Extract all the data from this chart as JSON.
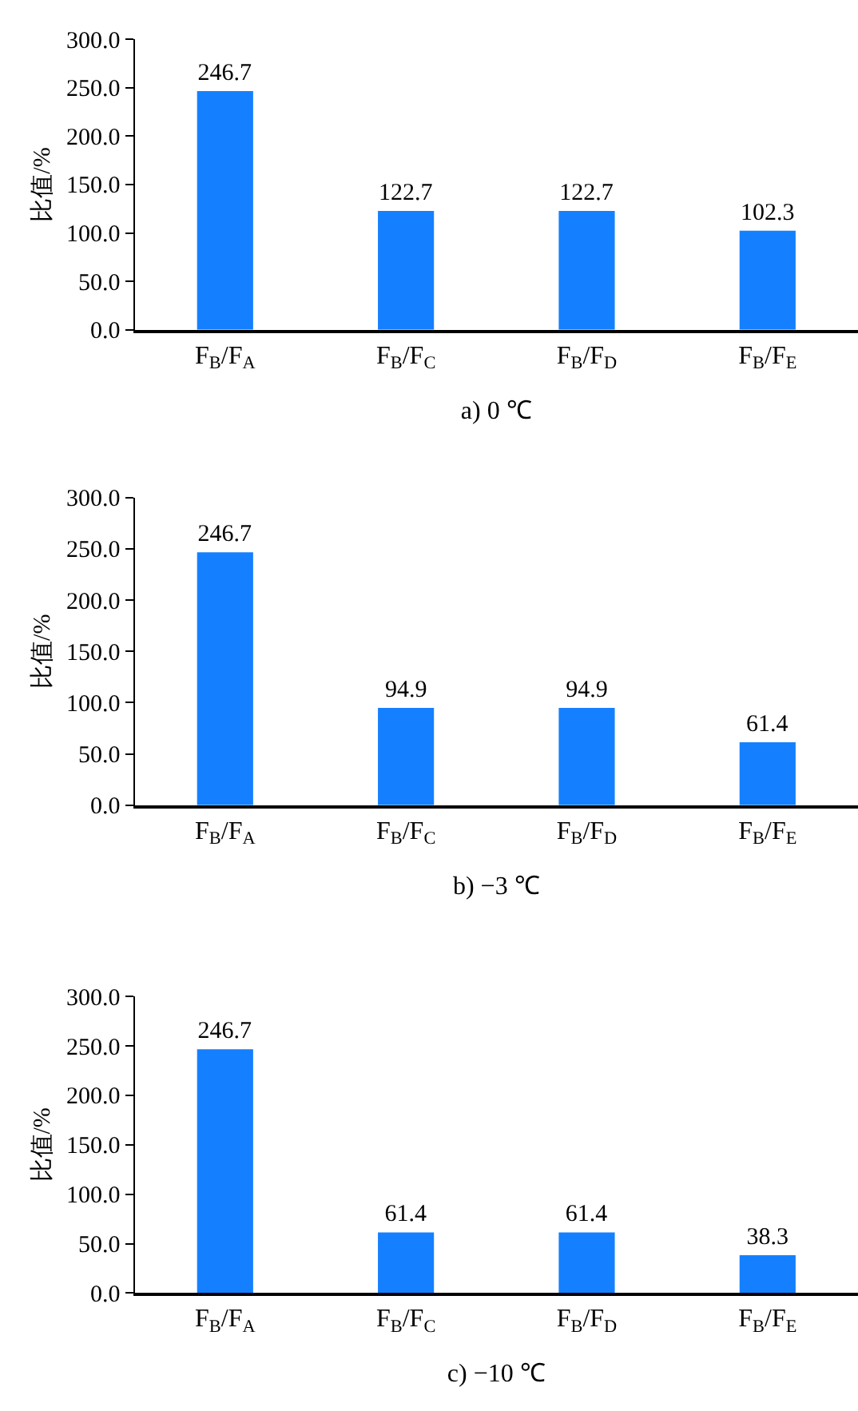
{
  "chart_data": [
    {
      "type": "bar",
      "categories": [
        "F$_{B}$/F$_{A}$",
        "F$_{B}$/F$_{C}$",
        "F$_{B}$/F$_{D}$",
        "F$_{B}$/F$_{E}$"
      ],
      "values": [
        246.7,
        122.7,
        122.7,
        102.3
      ],
      "color": "#1580ff",
      "xlabel": "a) 0 ℃",
      "ylabel": "比值/%",
      "ylim": [
        0,
        300
      ],
      "yticks": [
        {
          "value": 0,
          "label": "0.0"
        },
        {
          "value": 50,
          "label": "50.0"
        },
        {
          "value": 100,
          "label": "100.0"
        },
        {
          "value": 150,
          "label": "150.0"
        },
        {
          "value": 200,
          "label": "200.0"
        },
        {
          "value": 250,
          "label": "250.0"
        },
        {
          "value": 300,
          "label": "300.0"
        }
      ],
      "data_labels": true,
      "legend": false
    },
    {
      "type": "bar",
      "categories": [
        "F$_{B}$/F$_{A}$",
        "F$_{B}$/F$_{C}$",
        "F$_{B}$/F$_{D}$",
        "F$_{B}$/F$_{E}$"
      ],
      "values": [
        246.7,
        94.9,
        94.9,
        61.4
      ],
      "color": "#1580ff",
      "xlabel": "b) −3 ℃",
      "ylabel": "比值/%",
      "ylim": [
        0,
        300
      ],
      "yticks": [
        {
          "value": 0,
          "label": "0.0"
        },
        {
          "value": 50,
          "label": "50.0"
        },
        {
          "value": 100,
          "label": "100.0"
        },
        {
          "value": 150,
          "label": "150.0"
        },
        {
          "value": 200,
          "label": "200.0"
        },
        {
          "value": 250,
          "label": "250.0"
        },
        {
          "value": 300,
          "label": "300.0"
        }
      ],
      "data_labels": true,
      "legend": false
    },
    {
      "type": "bar",
      "categories": [
        "F$_{B}$/F$_{A}$",
        "F$_{B}$/F$_{C}$",
        "F$_{B}$/F$_{D}$",
        "F$_{B}$/F$_{E}$"
      ],
      "values": [
        246.7,
        61.4,
        61.4,
        38.3
      ],
      "color": "#1580ff",
      "xlabel": "c) −10 ℃",
      "ylabel": "比值/%",
      "ylim": [
        0,
        300
      ],
      "yticks": [
        {
          "value": 0,
          "label": "0.0"
        },
        {
          "value": 50,
          "label": "50.0"
        },
        {
          "value": 100,
          "label": "100.0"
        },
        {
          "value": 150,
          "label": "150.0"
        },
        {
          "value": 200,
          "label": "200.0"
        },
        {
          "value": 250,
          "label": "250.0"
        },
        {
          "value": 300,
          "label": "300.0"
        }
      ],
      "data_labels": true,
      "legend": false
    }
  ]
}
